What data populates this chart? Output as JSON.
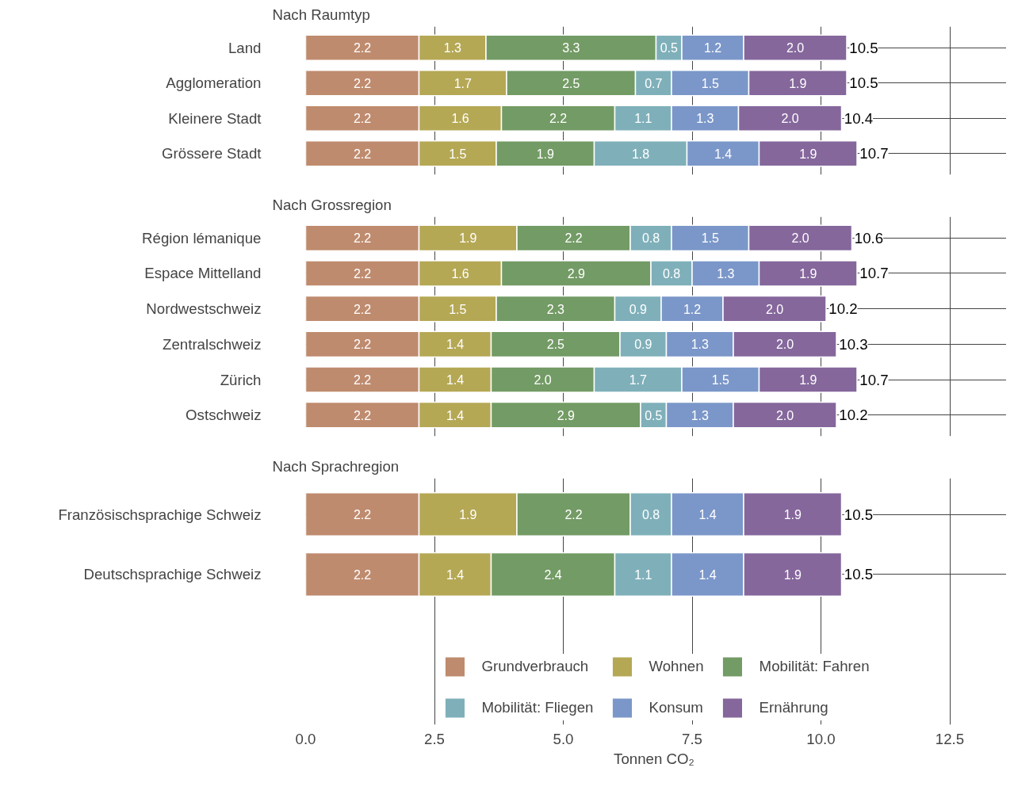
{
  "chart_data": [
    {
      "type": "bar",
      "orientation": "horizontal",
      "stacked": true,
      "title": "Nach Raumtyp",
      "categories": [
        "Land",
        "Agglomeration",
        "Kleinere Stadt",
        "Grössere Stadt"
      ],
      "series": [
        {
          "color": "#bf8b6e",
          "values": [
            2.2,
            2.2,
            2.2,
            2.2
          ],
          "value_labels": [
            "2.2",
            "2.2",
            "2.2",
            "2.2"
          ]
        },
        {
          "color": "#b5a855",
          "values": [
            1.3,
            1.7,
            1.6,
            1.5
          ],
          "value_labels": [
            "1.3",
            "1.7",
            "1.6",
            "1.5"
          ]
        },
        {
          "color": "#739b65",
          "values": [
            3.3,
            2.5,
            2.2,
            1.9
          ],
          "value_labels": [
            "3.3",
            "2.5",
            "2.2",
            "1.9"
          ]
        },
        {
          "color": "#7fb0ba",
          "values": [
            0.5,
            0.7,
            1.1,
            1.8
          ],
          "value_labels": [
            "0.5",
            "0.7",
            "1.1",
            "1.8"
          ]
        },
        {
          "color": "#7b97c9",
          "values": [
            1.2,
            1.5,
            1.3,
            1.4
          ],
          "value_labels": [
            "1.2",
            "1.5",
            "1.3",
            "1.4"
          ]
        },
        {
          "color": "#85679c",
          "values": [
            2.0,
            1.9,
            2.0,
            1.9
          ],
          "value_labels": [
            "2.0",
            "1.9",
            "2.0",
            "1.9"
          ]
        }
      ],
      "totals": [
        "10.5",
        "10.5",
        "10.4",
        "10.7"
      ],
      "xlim": [
        0,
        13.6
      ],
      "xticks": [
        0,
        2.5,
        5,
        7.5,
        10,
        12.5
      ],
      "tick_labels": "y",
      "grid": true
    },
    {
      "type": "bar",
      "orientation": "horizontal",
      "stacked": true,
      "title": "Nach Grossregion",
      "categories": [
        "Région lémanique",
        "Espace Mittelland",
        "Nordwestschweiz",
        "Zentralschweiz",
        "Zürich",
        "Ostschweiz"
      ],
      "series": [
        {
          "color": "#bf8b6e",
          "values": [
            2.2,
            2.2,
            2.2,
            2.2,
            2.2,
            2.2
          ],
          "value_labels": [
            "2.2",
            "2.2",
            "2.2",
            "2.2",
            "2.2",
            "2.2"
          ]
        },
        {
          "color": "#b5a855",
          "values": [
            1.9,
            1.6,
            1.5,
            1.4,
            1.4,
            1.4
          ],
          "value_labels": [
            "1.9",
            "1.6",
            "1.5",
            "1.4",
            "1.4",
            "1.4"
          ]
        },
        {
          "color": "#739b65",
          "values": [
            2.2,
            2.9,
            2.3,
            2.5,
            2.0,
            2.9
          ],
          "value_labels": [
            "2.2",
            "2.9",
            "2.3",
            "2.5",
            "2.0",
            "2.9"
          ]
        },
        {
          "color": "#7fb0ba",
          "values": [
            0.8,
            0.8,
            0.9,
            0.9,
            1.7,
            0.5
          ],
          "value_labels": [
            "0.8",
            "0.8",
            "0.9",
            "0.9",
            "1.7",
            "0.5"
          ]
        },
        {
          "color": "#7b97c9",
          "values": [
            1.5,
            1.3,
            1.2,
            1.3,
            1.5,
            1.3
          ],
          "value_labels": [
            "1.5",
            "1.3",
            "1.2",
            "1.3",
            "1.5",
            "1.3"
          ]
        },
        {
          "color": "#85679c",
          "values": [
            2.0,
            1.9,
            2.0,
            2.0,
            1.9,
            2.0
          ],
          "value_labels": [
            "2.0",
            "1.9",
            "2.0",
            "2.0",
            "1.9",
            "2.0"
          ]
        }
      ],
      "totals": [
        "10.6",
        "10.7",
        "10.2",
        "10.3",
        "10.7",
        "10.2"
      ],
      "xlim": [
        0,
        13.6
      ],
      "xticks": [
        0,
        2.5,
        5,
        7.5,
        10,
        12.5
      ],
      "tick_labels": "y",
      "grid": true
    },
    {
      "type": "bar",
      "orientation": "horizontal",
      "stacked": true,
      "title": "Nach Sprachregion",
      "xlabel": "Tonnen  CO₂",
      "categories": [
        "Französischsprachige Schweiz",
        "Deutschsprachige Schweiz"
      ],
      "series": [
        {
          "name": "Grundverbrauch",
          "color": "#bf8b6e",
          "values": [
            2.2,
            2.2
          ],
          "value_labels": [
            "2.2",
            "2.2"
          ]
        },
        {
          "name": "Wohnen",
          "color": "#b5a855",
          "values": [
            1.9,
            1.4
          ],
          "value_labels": [
            "1.9",
            "1.4"
          ]
        },
        {
          "name": "Mobilität: Fahren",
          "color": "#739b65",
          "values": [
            2.2,
            2.4
          ],
          "value_labels": [
            "2.2",
            "2.4"
          ]
        },
        {
          "name": "Mobilität: Fliegen",
          "color": "#7fb0ba",
          "values": [
            0.8,
            1.1
          ],
          "value_labels": [
            "0.8",
            "1.1"
          ]
        },
        {
          "name": "Konsum",
          "color": "#7b97c9",
          "values": [
            1.4,
            1.4
          ],
          "value_labels": [
            "1.4",
            "1.4"
          ]
        },
        {
          "name": "Ernährung",
          "color": "#85679c",
          "values": [
            1.9,
            1.9
          ],
          "value_labels": [
            "1.9",
            "1.9"
          ]
        }
      ],
      "totals": [
        "10.5",
        "10.5"
      ],
      "xlim": [
        0,
        13.6
      ],
      "xticks": [
        {
          "value": 0,
          "label": "0.0"
        },
        2.5,
        {
          "value": 5,
          "label": "5.0"
        },
        7.5,
        {
          "value": 10,
          "label": "10.0"
        },
        12.5
      ],
      "grid": true,
      "legend": "bottom"
    }
  ]
}
